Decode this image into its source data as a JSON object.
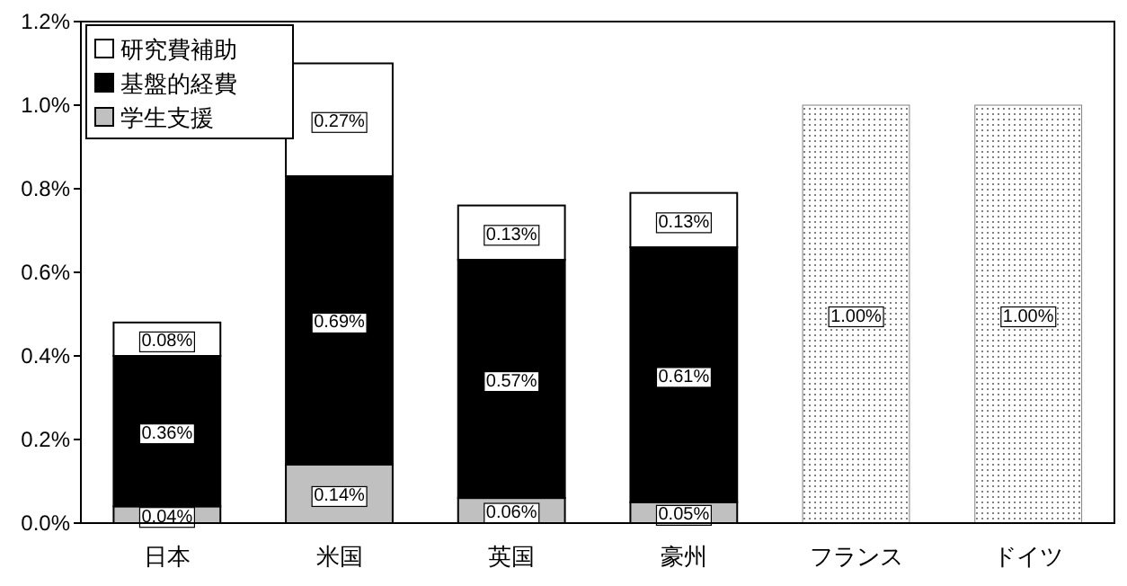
{
  "chart_data": {
    "type": "bar",
    "stacked": true,
    "categories": [
      "日本",
      "米国",
      "英国",
      "豪州",
      "フランス",
      "ドイツ"
    ],
    "series": [
      {
        "name": "学生支援",
        "color": "#c0c0c0",
        "values": [
          0.04,
          0.14,
          0.06,
          0.05,
          null,
          null
        ],
        "value_labels": [
          "0.04%",
          "0.14%",
          "0.06%",
          "0.05%",
          null,
          null
        ]
      },
      {
        "name": "基盤的経費",
        "color": "#000000",
        "values": [
          0.36,
          0.69,
          0.57,
          0.61,
          null,
          null
        ],
        "value_labels": [
          "0.36%",
          "0.69%",
          "0.57%",
          "0.61%",
          null,
          null
        ]
      },
      {
        "name": "研究費補助",
        "color": "#ffffff",
        "values": [
          0.08,
          0.27,
          0.13,
          0.13,
          null,
          null
        ],
        "value_labels": [
          "0.08%",
          "0.27%",
          "0.13%",
          "0.13%",
          null,
          null
        ]
      },
      {
        "color": "#808080",
        "values": [
          null,
          null,
          null,
          null,
          1.0,
          1.0
        ],
        "value_labels": [
          null,
          null,
          null,
          null,
          "1.00%",
          "1.00%"
        ]
      }
    ],
    "ylim": [
      0,
      1.2
    ],
    "yticks": [
      {
        "value": 0,
        "label": "0.0%"
      },
      {
        "value": 0.2,
        "label": "0.2%"
      },
      {
        "value": 0.4,
        "label": "0.4%"
      },
      {
        "value": 0.6,
        "label": "0.6%"
      },
      {
        "value": 0.8,
        "label": "0.8%"
      },
      {
        "value": 1.0,
        "label": "1.0%"
      },
      {
        "value": 1.2,
        "label": "1.2%"
      }
    ],
    "grid": false,
    "legend": "top left"
  }
}
